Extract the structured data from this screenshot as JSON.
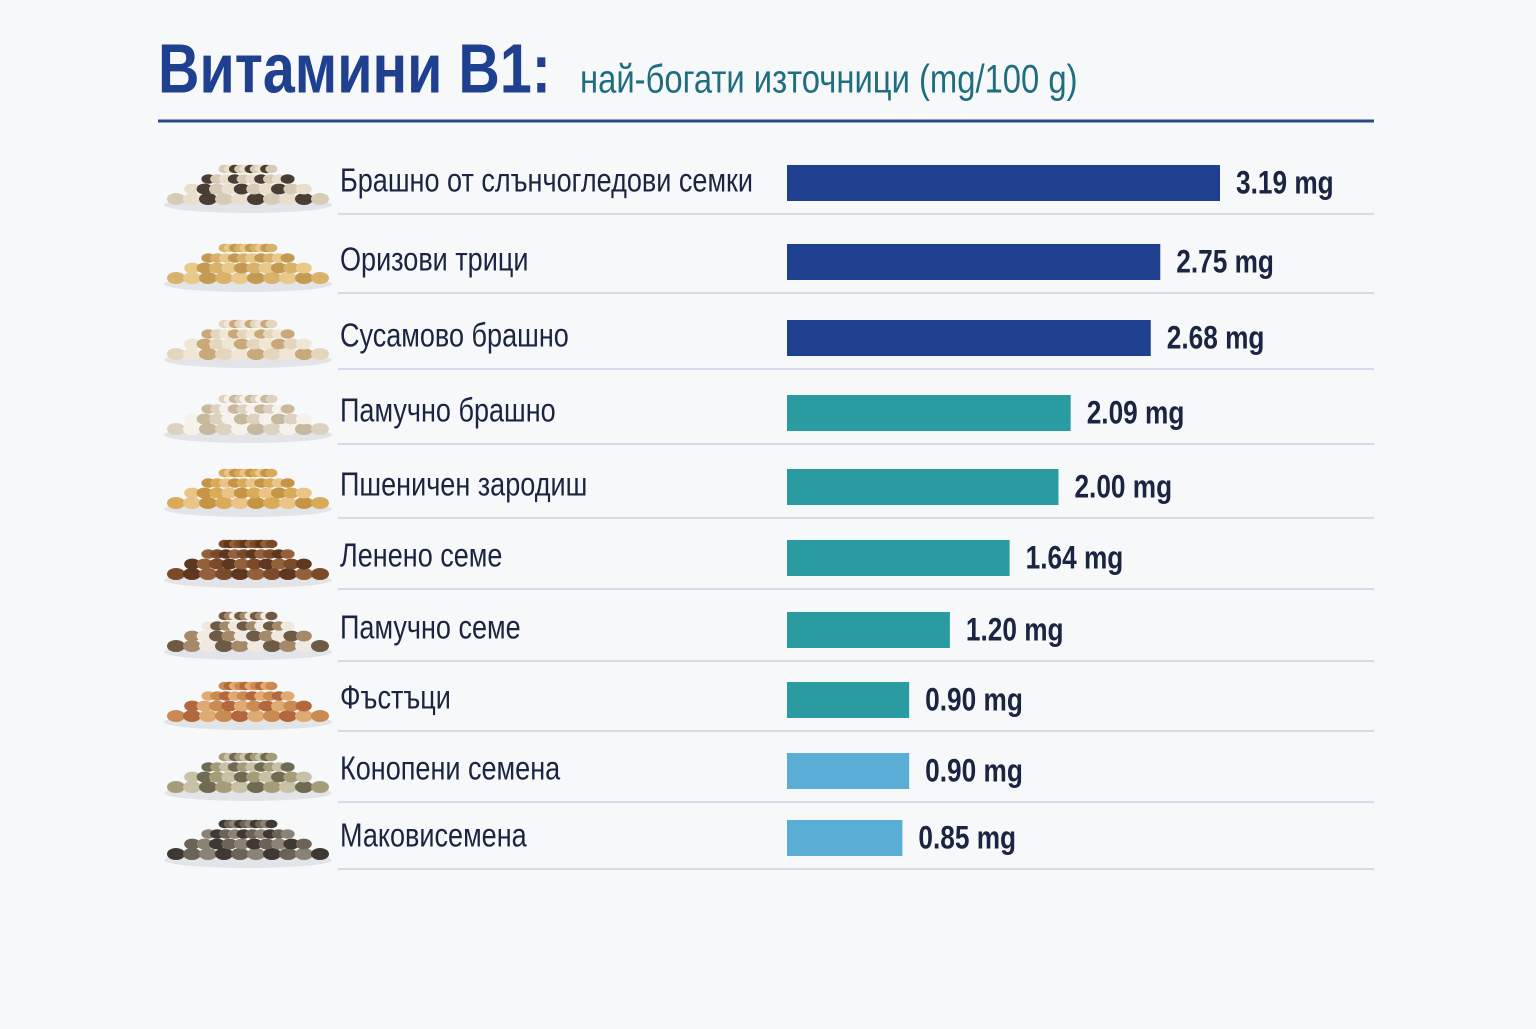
{
  "chart_data": {
    "type": "bar",
    "orientation": "horizontal",
    "title": "Витамини B1:",
    "subtitle": "най-богати източници (mg/100 g)",
    "categories": [
      "Брашно от слънчогледови семки",
      "Оризови трици",
      "Сусамово брашно",
      "Памучно брашно",
      "Пшеничен зародиш",
      "Ленено семе",
      "Памучно семе",
      "Фъстъци",
      "Конопени семена",
      "Маковисемена"
    ],
    "values": [
      3.19,
      2.75,
      2.68,
      2.09,
      2.0,
      1.64,
      1.2,
      0.9,
      0.9,
      0.85
    ],
    "value_labels": [
      "3.19 mg",
      "2.75 mg",
      "2.68 mg",
      "2.09 mg",
      "2.00 mg",
      "1.64 mg",
      "1.20 mg",
      "0.90 mg",
      "0.90 mg",
      "0.85 mg"
    ],
    "colors": [
      "#1f3f8f",
      "#1f3f8f",
      "#1f3f8f",
      "#2a9ba1",
      "#2a9ba1",
      "#2a9ba1",
      "#2a9ba1",
      "#2a9ba1",
      "#5aaed5",
      "#5aaed5"
    ]
  }
}
